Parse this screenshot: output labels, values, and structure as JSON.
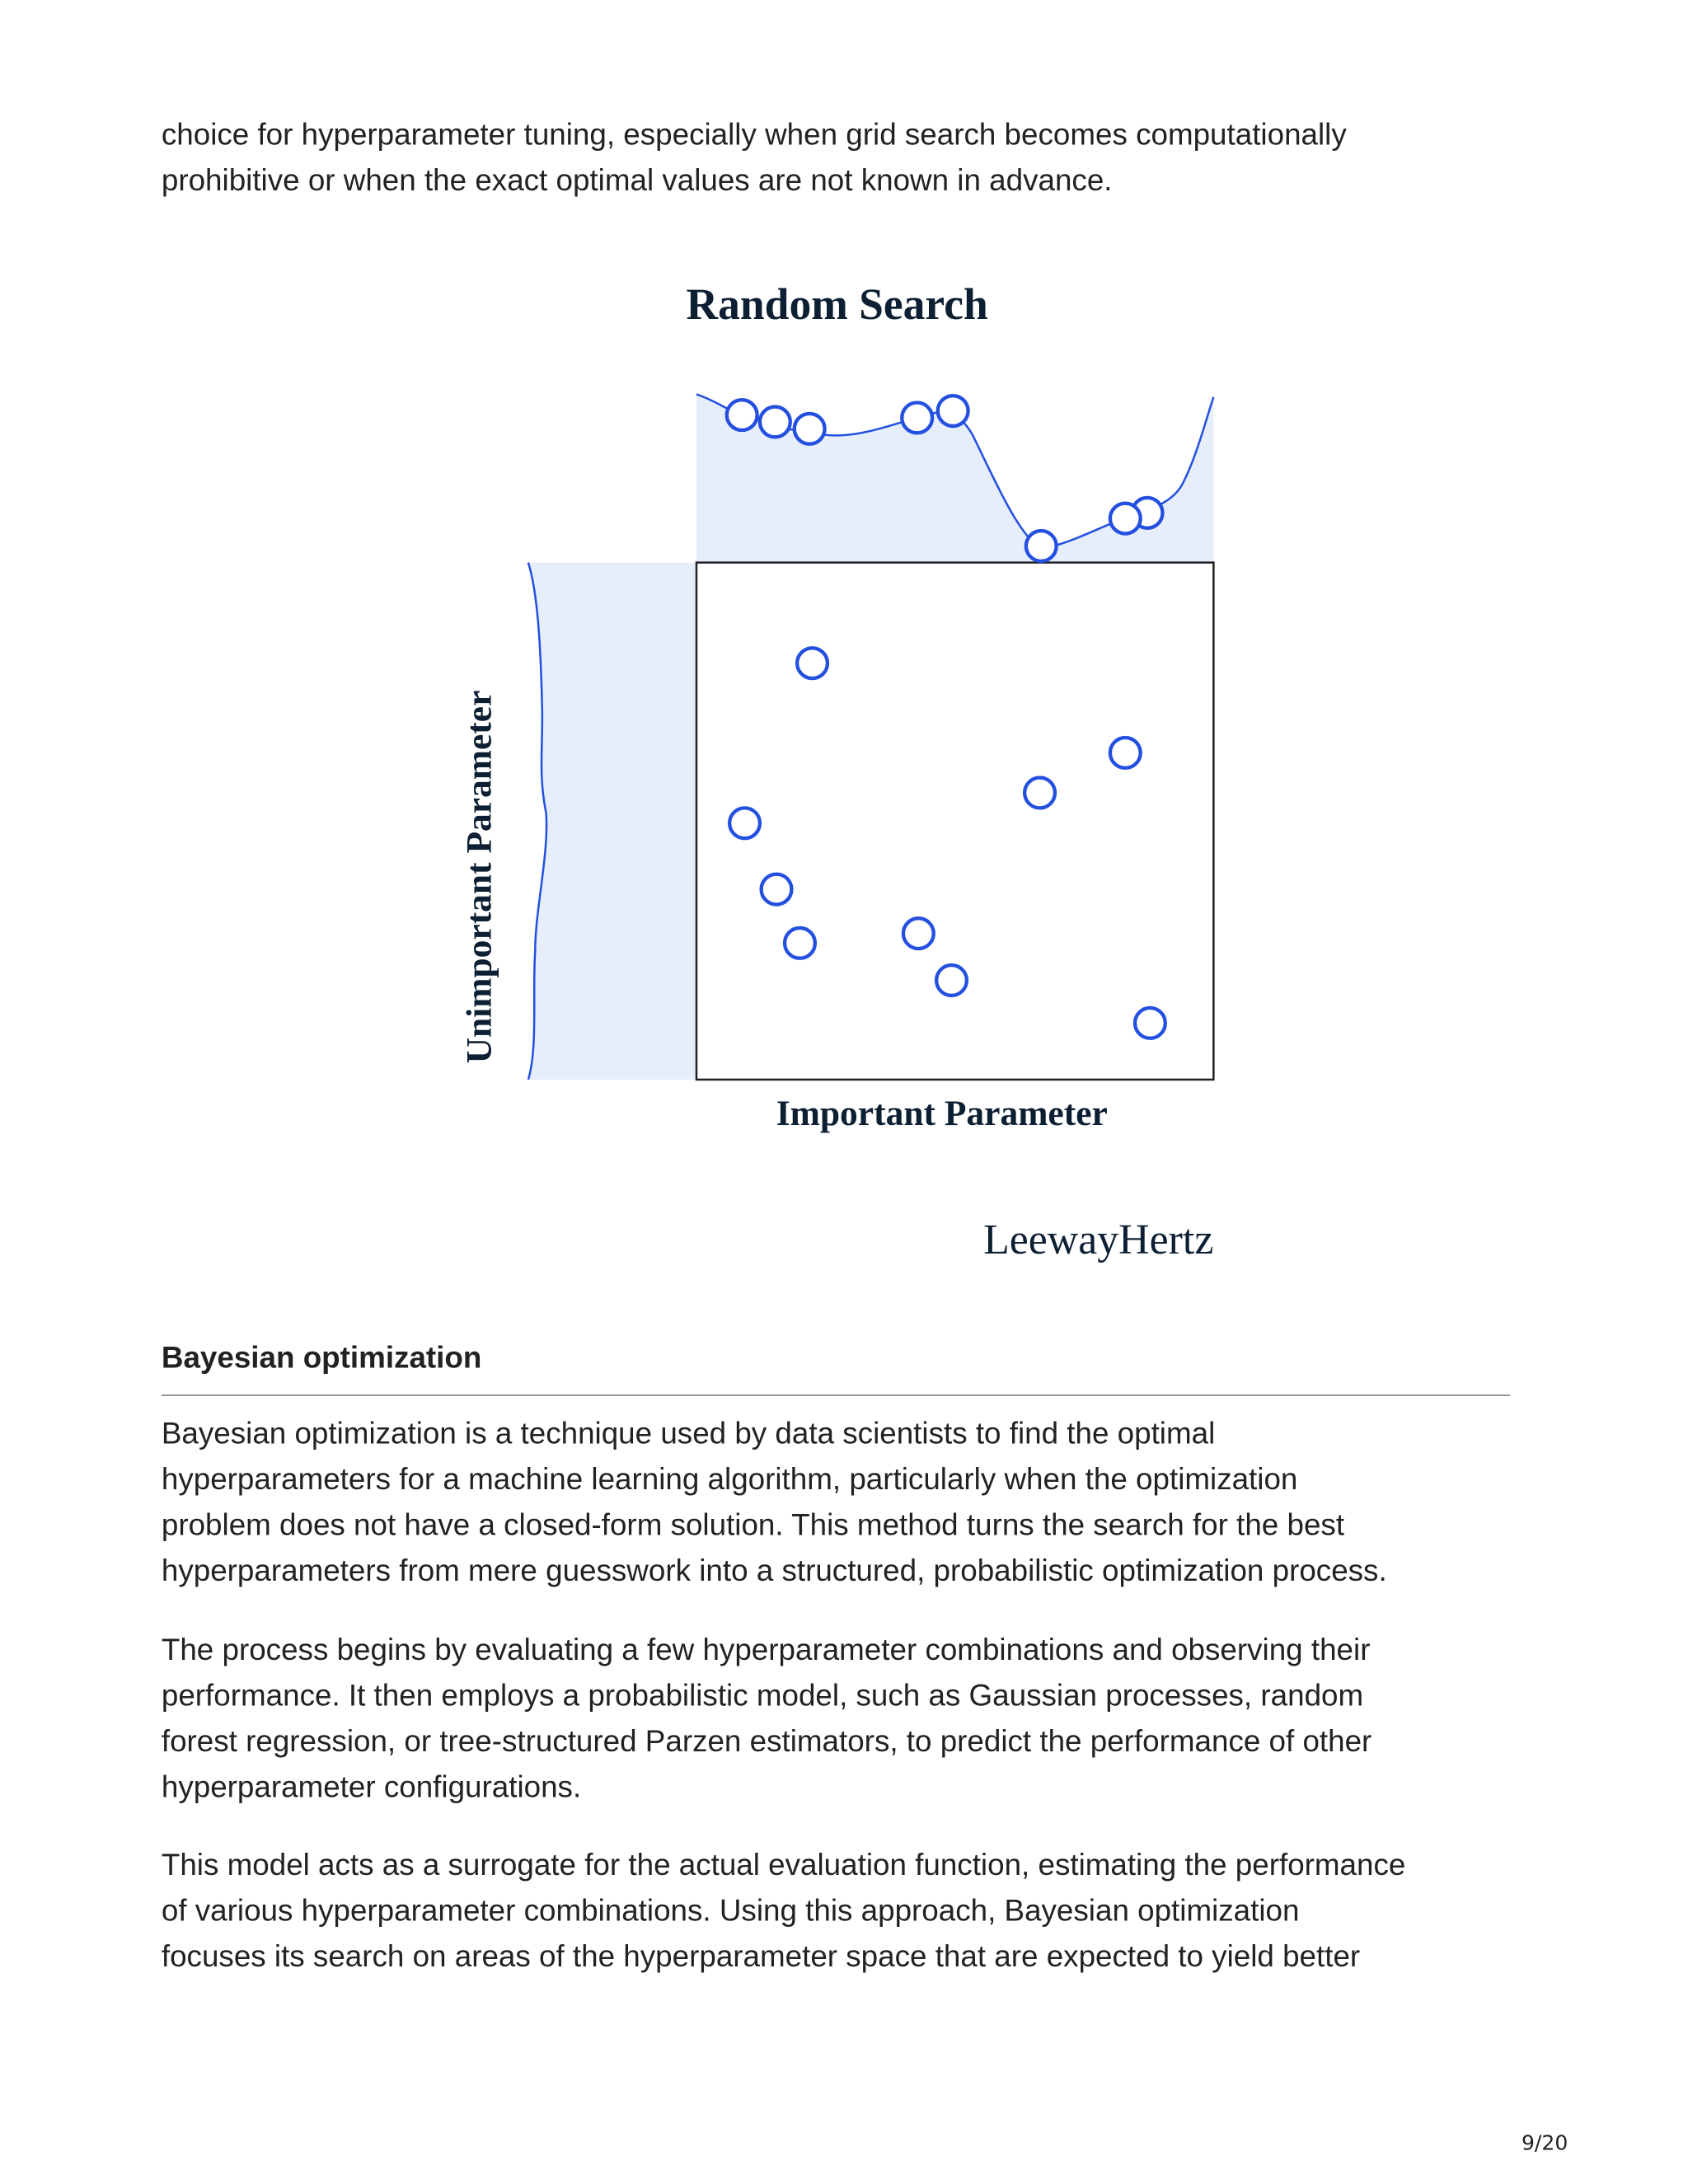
{
  "intro": {
    "lines": [
      "choice for hyperparameter tuning, especially when grid search becomes computationally",
      "prohibitive or when the exact optimal values are not known in advance."
    ]
  },
  "figure": {
    "title": "Random Search",
    "y_label": "Unimportant Parameter",
    "x_label": "Important Parameter",
    "credit": "LeewayHertz"
  },
  "section": {
    "heading": "Bayesian optimization",
    "paragraphs": [
      {
        "lines": [
          "Bayesian optimization is a technique used by data scientists to find the optimal",
          "hyperparameters for a machine learning algorithm, particularly when the optimization",
          "problem does not have a closed-form solution. This method turns the search for the best",
          "hyperparameters from mere guesswork into a structured, probabilistic optimization process."
        ]
      },
      {
        "lines": [
          "The process begins by evaluating a few hyperparameter combinations and observing their",
          "performance. It then employs a probabilistic model, such as Gaussian processes, random",
          "forest regression, or tree-structured Parzen estimators, to predict the performance of other",
          "hyperparameter configurations."
        ]
      },
      {
        "lines": [
          "This model acts as a surrogate for the actual evaluation function, estimating the performance",
          "of various hyperparameter combinations. Using this approach, Bayesian optimization",
          "focuses its search on areas of the hyperparameter space that are expected to yield better"
        ]
      }
    ]
  },
  "footer": {
    "page": "9/20"
  }
}
